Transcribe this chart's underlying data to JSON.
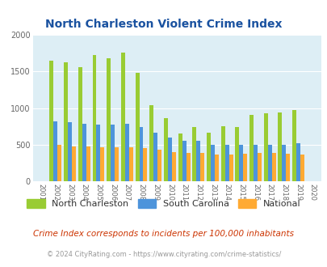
{
  "title": "North Charleston Violent Crime Index",
  "years": [
    2001,
    2002,
    2003,
    2004,
    2005,
    2006,
    2007,
    2008,
    2009,
    2010,
    2011,
    2012,
    2013,
    2014,
    2015,
    2016,
    2017,
    2018,
    2019,
    2020
  ],
  "north_charleston": [
    0,
    1650,
    1620,
    1555,
    1720,
    1680,
    1760,
    1480,
    1035,
    860,
    660,
    740,
    665,
    750,
    740,
    910,
    930,
    940,
    975,
    0
  ],
  "south_carolina": [
    0,
    825,
    810,
    785,
    780,
    775,
    785,
    745,
    670,
    600,
    560,
    555,
    495,
    505,
    500,
    500,
    500,
    500,
    520,
    0
  ],
  "national": [
    0,
    495,
    480,
    475,
    470,
    470,
    470,
    460,
    430,
    400,
    390,
    385,
    370,
    365,
    375,
    385,
    395,
    380,
    365,
    0
  ],
  "colors": {
    "north_charleston": "#99cc33",
    "south_carolina": "#4d94db",
    "national": "#ffaa33"
  },
  "ylim": [
    0,
    2000
  ],
  "yticks": [
    0,
    500,
    1000,
    1500,
    2000
  ],
  "bg_color": "#ddeef5",
  "legend_labels": [
    "North Charleston",
    "South Carolina",
    "National"
  ],
  "footnote1": "Crime Index corresponds to incidents per 100,000 inhabitants",
  "footnote2": "© 2024 CityRating.com - https://www.cityrating.com/crime-statistics/",
  "title_color": "#1a52a0",
  "footnote1_color": "#cc3300",
  "footnote2_color": "#999999"
}
